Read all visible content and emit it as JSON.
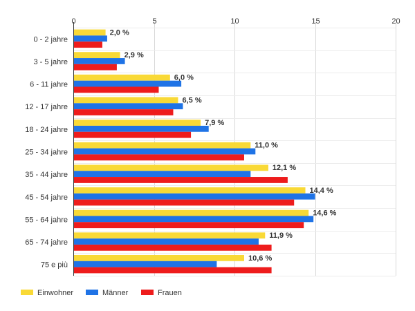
{
  "chart_data": {
    "type": "bar",
    "orientation": "horizontal",
    "categories": [
      "0 - 2 jahre",
      "3 - 5 jahre",
      "6 - 11 jahre",
      "12 - 17 jahre",
      "18 - 24 jahre",
      "25 - 34 jahre",
      "35 - 44 jahre",
      "45 - 54 jahre",
      "55 - 64 jahre",
      "65 - 74 jahre",
      "75 e più"
    ],
    "xlim": [
      0,
      20
    ],
    "xticks": [
      0,
      5,
      10,
      15,
      20
    ],
    "grid": true,
    "legend_position": "bottom-left",
    "series": [
      {
        "name": "Einwohner",
        "color": "#f9d936",
        "values": [
          2.0,
          2.9,
          6.0,
          6.5,
          7.9,
          11.0,
          12.1,
          14.4,
          14.6,
          11.9,
          10.6
        ],
        "labels": [
          "2,0 %",
          "2,9 %",
          "6,0 %",
          "6,5 %",
          "7,9 %",
          "11,0 %",
          "12,1 %",
          "14,4 %",
          "14,6 %",
          "11,9 %",
          "10,6 %"
        ]
      },
      {
        "name": "Männer",
        "color": "#1f73e6",
        "values": [
          2.1,
          3.2,
          6.7,
          6.8,
          8.4,
          11.3,
          11.0,
          15.0,
          14.9,
          11.5,
          8.9
        ]
      },
      {
        "name": "Frauen",
        "color": "#ee1c1c",
        "values": [
          1.8,
          2.7,
          5.3,
          6.2,
          7.3,
          10.6,
          13.3,
          13.7,
          14.3,
          12.3,
          12.3
        ]
      }
    ]
  }
}
